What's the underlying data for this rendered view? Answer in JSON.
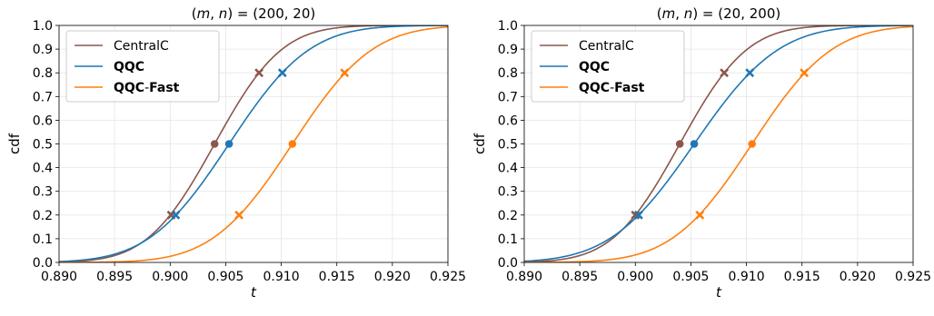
{
  "chart_data": [
    {
      "type": "line",
      "title": "(m, n) = (200, 20)",
      "title_parts": [
        "(",
        "m",
        ", ",
        "n",
        ") = (200, 20)"
      ],
      "xlabel": "t",
      "ylabel": "cdf",
      "xlim": [
        0.89,
        0.925
      ],
      "ylim": [
        0.0,
        1.0
      ],
      "xticks": [
        "0.890",
        "0.895",
        "0.900",
        "0.905",
        "0.910",
        "0.915",
        "0.920",
        "0.925"
      ],
      "yticks": [
        "0.0",
        "0.1",
        "0.2",
        "0.3",
        "0.4",
        "0.5",
        "0.6",
        "0.7",
        "0.8",
        "0.9",
        "1.0"
      ],
      "grid": true,
      "legend": "top-left",
      "series": [
        {
          "name": "CentralC",
          "bold": false,
          "color": "#8c564b",
          "mu": 0.904,
          "sigma": 0.00475,
          "markers": [
            {
              "x": 0.9001,
              "y": 0.2,
              "shape": "x"
            },
            {
              "x": 0.904,
              "y": 0.5,
              "shape": "o"
            },
            {
              "x": 0.908,
              "y": 0.8,
              "shape": "x"
            }
          ]
        },
        {
          "name": "QQC",
          "bold": true,
          "color": "#1f77b4",
          "mu": 0.9053,
          "sigma": 0.00568,
          "markers": [
            {
              "x": 0.9005,
              "y": 0.2,
              "shape": "x"
            },
            {
              "x": 0.9053,
              "y": 0.5,
              "shape": "o"
            },
            {
              "x": 0.9101,
              "y": 0.8,
              "shape": "x"
            }
          ]
        },
        {
          "name": "QQC-Fast",
          "bold": true,
          "color": "#ff7f0e",
          "mu": 0.911,
          "sigma": 0.00565,
          "markers": [
            {
              "x": 0.9062,
              "y": 0.2,
              "shape": "x"
            },
            {
              "x": 0.911,
              "y": 0.5,
              "shape": "o"
            },
            {
              "x": 0.9157,
              "y": 0.8,
              "shape": "x"
            }
          ]
        }
      ]
    },
    {
      "type": "line",
      "title": "(m, n) = (20, 200)",
      "title_parts": [
        "(",
        "m",
        ", ",
        "n",
        ") = (20, 200)"
      ],
      "xlabel": "t",
      "ylabel": "cdf",
      "xlim": [
        0.89,
        0.925
      ],
      "ylim": [
        0.0,
        1.0
      ],
      "xticks": [
        "0.890",
        "0.895",
        "0.900",
        "0.905",
        "0.910",
        "0.915",
        "0.920",
        "0.925"
      ],
      "yticks": [
        "0.0",
        "0.1",
        "0.2",
        "0.3",
        "0.4",
        "0.5",
        "0.6",
        "0.7",
        "0.8",
        "0.9",
        "1.0"
      ],
      "grid": true,
      "legend": "top-left",
      "series": [
        {
          "name": "CentralC",
          "bold": false,
          "color": "#8c564b",
          "mu": 0.904,
          "sigma": 0.00475,
          "markers": [
            {
              "x": 0.9,
              "y": 0.2,
              "shape": "x"
            },
            {
              "x": 0.904,
              "y": 0.5,
              "shape": "o"
            },
            {
              "x": 0.908,
              "y": 0.8,
              "shape": "x"
            }
          ]
        },
        {
          "name": "QQC",
          "bold": true,
          "color": "#1f77b4",
          "mu": 0.9053,
          "sigma": 0.00595,
          "markers": [
            {
              "x": 0.9003,
              "y": 0.2,
              "shape": "x"
            },
            {
              "x": 0.9053,
              "y": 0.5,
              "shape": "o"
            },
            {
              "x": 0.9103,
              "y": 0.8,
              "shape": "x"
            }
          ]
        },
        {
          "name": "QQC-Fast",
          "bold": true,
          "color": "#ff7f0e",
          "mu": 0.9105,
          "sigma": 0.00565,
          "markers": [
            {
              "x": 0.9058,
              "y": 0.2,
              "shape": "x"
            },
            {
              "x": 0.9105,
              "y": 0.5,
              "shape": "o"
            },
            {
              "x": 0.9152,
              "y": 0.8,
              "shape": "x"
            }
          ]
        }
      ]
    }
  ]
}
